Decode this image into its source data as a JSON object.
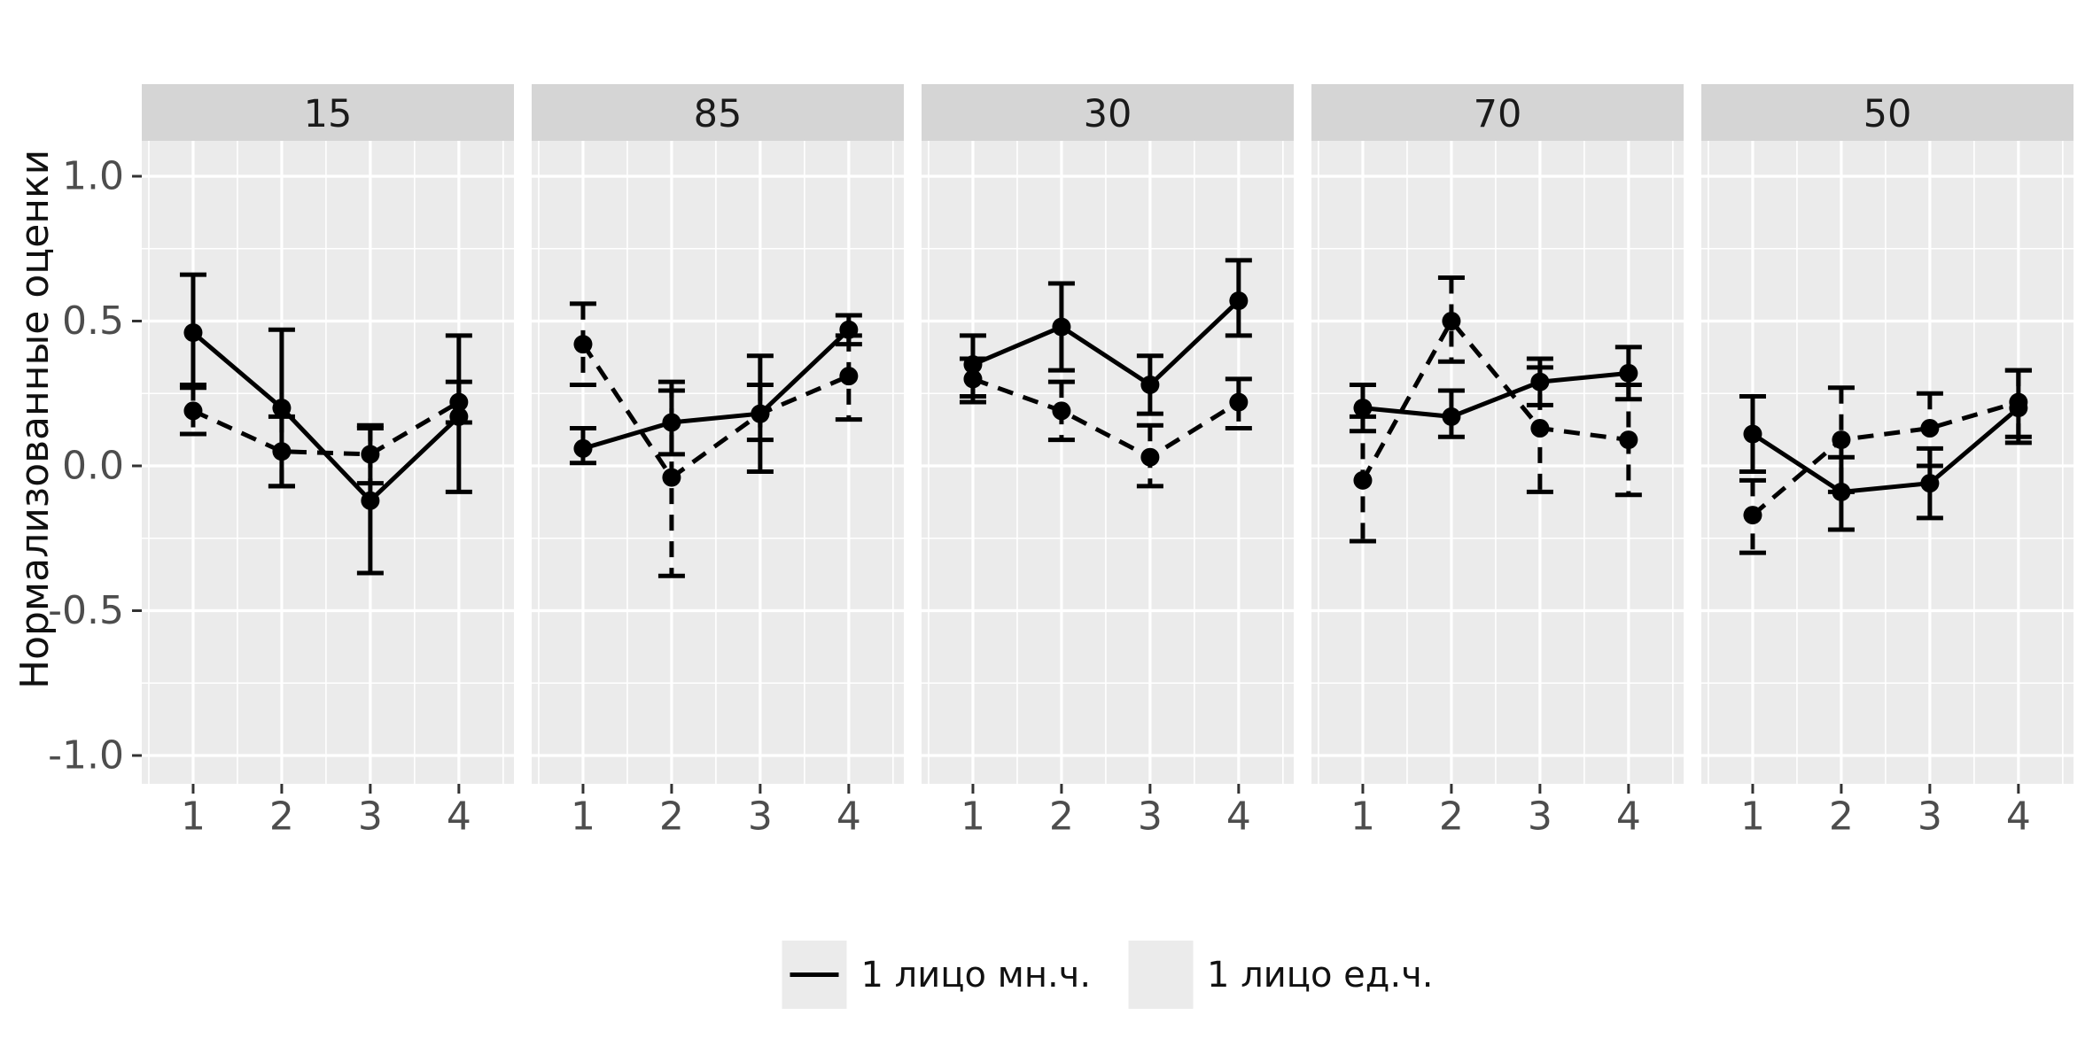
{
  "chart_data": {
    "type": "line",
    "description": "Faceted ggplot-style figure: normalized ratings by position (1-4) for five frequency groups, two linetype series with error bars",
    "ylabel": "Нормализованные оценки",
    "x_tick_labels": [
      "1",
      "2",
      "3",
      "4"
    ],
    "y_ticks": [
      1.0,
      0.5,
      0.0,
      -0.5,
      -1.0
    ],
    "y_tick_labels": [
      "1.0",
      "0.5",
      "0.0",
      "-0.5",
      "-1.0"
    ],
    "ylim": [
      -1.1,
      1.13
    ],
    "grid": true,
    "legend_position": "bottom",
    "series_names": [
      "1 лицо мн.ч.",
      "1 лицо ед.ч."
    ],
    "colors": {
      "panel_bg": "#EBEBEB",
      "strip_bg": "#D5D5D5",
      "strip_text": "#1A1A1A",
      "grid": "#FFFFFF",
      "axis_text": "#4D4D4D",
      "tick_mark": "#333333",
      "data": "#000000"
    },
    "facets": [
      {
        "label": "15",
        "series": [
          {
            "name": "1 лицо мн.ч.",
            "linetype": "solid",
            "values": [
              0.46,
              0.2,
              -0.12,
              0.17
            ],
            "ci_low": [
              0.27,
              -0.07,
              -0.37,
              -0.09
            ],
            "ci_high": [
              0.66,
              0.47,
              0.13,
              0.45
            ]
          },
          {
            "name": "1 лицо ед.ч.",
            "linetype": "dashed",
            "values": [
              0.19,
              0.05,
              0.04,
              0.22
            ],
            "ci_low": [
              0.11,
              -0.07,
              -0.06,
              0.15
            ],
            "ci_high": [
              0.28,
              0.17,
              0.14,
              0.29
            ]
          }
        ]
      },
      {
        "label": "85",
        "series": [
          {
            "name": "1 лицо мн.ч.",
            "linetype": "solid",
            "values": [
              0.06,
              0.15,
              0.18,
              0.47
            ],
            "ci_low": [
              0.01,
              0.04,
              -0.02,
              0.42
            ],
            "ci_high": [
              0.13,
              0.26,
              0.38,
              0.52
            ]
          },
          {
            "name": "1 лицо ед.ч.",
            "linetype": "dashed",
            "values": [
              0.42,
              -0.04,
              0.18,
              0.31
            ],
            "ci_low": [
              0.28,
              -0.38,
              0.09,
              0.16
            ],
            "ci_high": [
              0.56,
              0.29,
              0.28,
              0.45
            ]
          }
        ]
      },
      {
        "label": "30",
        "series": [
          {
            "name": "1 лицо мн.ч.",
            "linetype": "solid",
            "values": [
              0.35,
              0.48,
              0.28,
              0.57
            ],
            "ci_low": [
              0.24,
              0.33,
              0.18,
              0.45
            ],
            "ci_high": [
              0.45,
              0.63,
              0.38,
              0.71
            ]
          },
          {
            "name": "1 лицо ед.ч.",
            "linetype": "dashed",
            "values": [
              0.3,
              0.19,
              0.03,
              0.22
            ],
            "ci_low": [
              0.22,
              0.09,
              -0.07,
              0.13
            ],
            "ci_high": [
              0.37,
              0.29,
              0.14,
              0.3
            ]
          }
        ]
      },
      {
        "label": "70",
        "series": [
          {
            "name": "1 лицо мн.ч.",
            "linetype": "solid",
            "values": [
              0.2,
              0.17,
              0.29,
              0.32
            ],
            "ci_low": [
              0.12,
              0.1,
              0.21,
              0.23
            ],
            "ci_high": [
              0.28,
              0.26,
              0.37,
              0.41
            ]
          },
          {
            "name": "1 лицо ед.ч.",
            "linetype": "dashed",
            "values": [
              -0.05,
              0.5,
              0.13,
              0.09
            ],
            "ci_low": [
              -0.26,
              0.36,
              -0.09,
              -0.1
            ],
            "ci_high": [
              0.17,
              0.65,
              0.34,
              0.28
            ]
          }
        ]
      },
      {
        "label": "50",
        "series": [
          {
            "name": "1 лицо мн.ч.",
            "linetype": "solid",
            "values": [
              0.11,
              -0.09,
              -0.06,
              0.2
            ],
            "ci_low": [
              -0.02,
              -0.22,
              -0.18,
              0.08
            ],
            "ci_high": [
              0.24,
              0.03,
              0.06,
              0.33
            ]
          },
          {
            "name": "1 лицо ед.ч.",
            "linetype": "dashed",
            "values": [
              -0.17,
              0.09,
              0.13,
              0.22
            ],
            "ci_low": [
              -0.3,
              -0.09,
              0.0,
              0.1
            ],
            "ci_high": [
              -0.05,
              0.27,
              0.25,
              0.33
            ]
          }
        ]
      }
    ]
  },
  "legend": {
    "items": [
      {
        "icon": "solid-line",
        "label": "1 лицо мн.ч."
      },
      {
        "icon": "dashed-line",
        "label": "1 лицо ед.ч."
      }
    ]
  }
}
